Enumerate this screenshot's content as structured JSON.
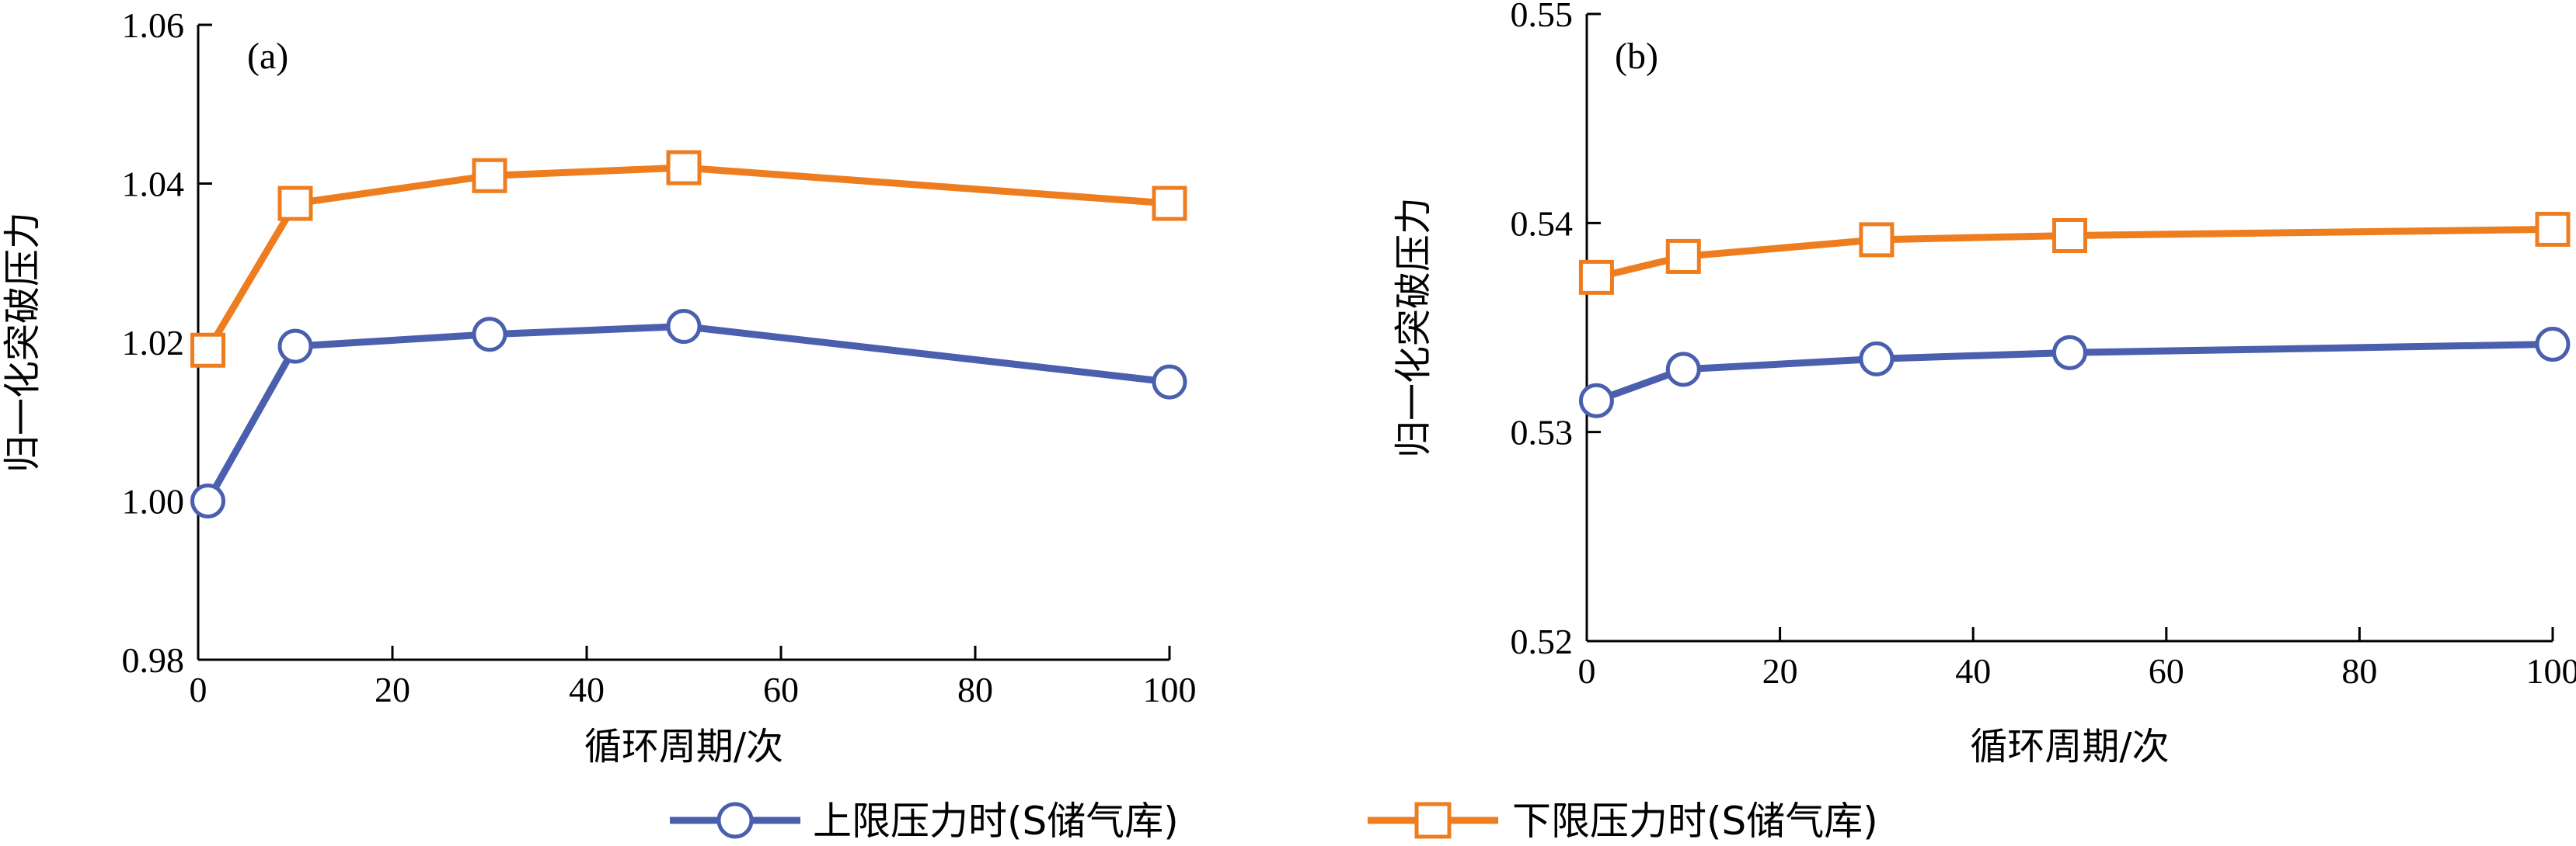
{
  "chart_data": [
    {
      "type": "line",
      "panel_label": "(a)",
      "xlabel": "循环周期/次",
      "ylabel": "归一化突破压力",
      "xlim": [
        0,
        100
      ],
      "ylim": [
        0.98,
        1.06
      ],
      "xticks": [
        0,
        20,
        40,
        60,
        80,
        100
      ],
      "xtick_labels": [
        "0",
        "20",
        "40",
        "60",
        "80",
        "100"
      ],
      "yticks": [
        0.98,
        1.0,
        1.02,
        1.04,
        1.06
      ],
      "ytick_labels": [
        "0.98",
        "1.00",
        "1.02",
        "1.04",
        "1.06"
      ],
      "grid": false,
      "series": [
        {
          "name": "上限压力时(S储气库)",
          "marker": "circle",
          "color": "#4a5fad",
          "x": [
            1,
            10,
            30,
            50,
            100
          ],
          "y": [
            1.0,
            1.0195,
            1.021,
            1.022,
            1.015
          ]
        },
        {
          "name": "下限压力时(S储气库)",
          "marker": "square",
          "color": "#ee7d1f",
          "x": [
            1,
            10,
            30,
            50,
            100
          ],
          "y": [
            1.019,
            1.0375,
            1.041,
            1.042,
            1.0375
          ]
        }
      ]
    },
    {
      "type": "line",
      "panel_label": "(b)",
      "xlabel": "循环周期/次",
      "ylabel": "归一化突破压力",
      "xlim": [
        0,
        100
      ],
      "ylim": [
        0.52,
        0.55
      ],
      "xticks": [
        0,
        20,
        40,
        60,
        80,
        100
      ],
      "xtick_labels": [
        "0",
        "20",
        "40",
        "60",
        "80",
        "100"
      ],
      "yticks": [
        0.52,
        0.53,
        0.54,
        0.55
      ],
      "ytick_labels": [
        "0.52",
        "0.53",
        "0.54",
        "0.55"
      ],
      "grid": false,
      "series": [
        {
          "name": "上限压力时(S储气库)",
          "marker": "circle",
          "color": "#4a5fad",
          "x": [
            1,
            10,
            30,
            50,
            100
          ],
          "y": [
            0.5315,
            0.533,
            0.5335,
            0.5338,
            0.5342
          ]
        },
        {
          "name": "下限压力时(S储气库)",
          "marker": "square",
          "color": "#ee7d1f",
          "x": [
            1,
            10,
            30,
            50,
            100
          ],
          "y": [
            0.5374,
            0.5384,
            0.5392,
            0.5394,
            0.5397
          ]
        }
      ]
    }
  ],
  "legend": {
    "placement": "bottom-center",
    "entries": [
      {
        "label": "上限压力时(S储气库)",
        "marker": "circle",
        "color": "#4a5fad"
      },
      {
        "label": "下限压力时(S储气库)",
        "marker": "square",
        "color": "#ee7d1f"
      }
    ]
  }
}
